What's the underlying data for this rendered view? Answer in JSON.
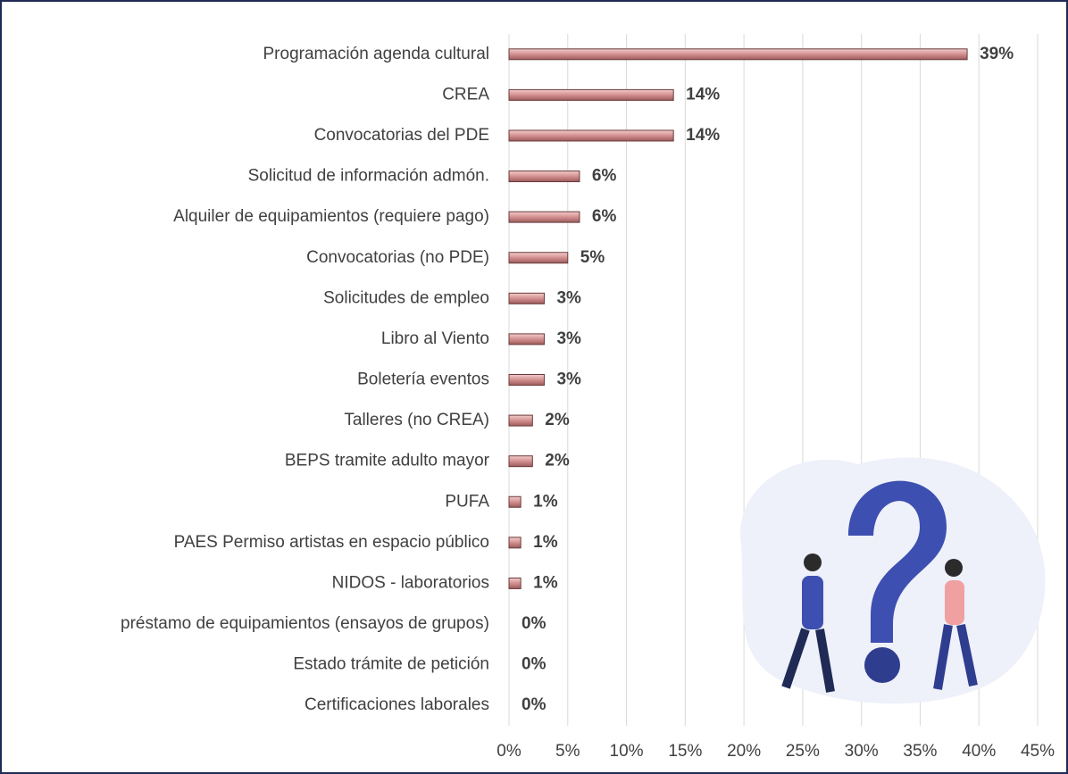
{
  "chart_data": {
    "type": "hbar",
    "categories": [
      "Programación agenda cultural",
      "CREA",
      "Convocatorias del PDE",
      "Solicitud de información admón.",
      "Alquiler de equipamientos (requiere pago)",
      "Convocatorias (no PDE)",
      "Solicitudes de empleo",
      "Libro al Viento",
      "Boletería eventos",
      "Talleres (no CREA)",
      "BEPS tramite adulto mayor",
      "PUFA",
      "PAES Permiso artistas en espacio público",
      "NIDOS - laboratorios",
      "préstamo de equipamientos (ensayos de grupos)",
      "Estado trámite de petición",
      "Certificaciones laborales"
    ],
    "values": [
      39,
      14,
      14,
      6,
      6,
      5,
      3,
      3,
      3,
      2,
      2,
      1,
      1,
      1,
      0,
      0,
      0
    ],
    "value_labels": [
      "39%",
      "14%",
      "14%",
      "6%",
      "6%",
      "5%",
      "3%",
      "3%",
      "3%",
      "2%",
      "2%",
      "1%",
      "1%",
      "1%",
      "0%",
      "0%",
      "0%"
    ],
    "color": "#d99a9a",
    "xlim": [
      0,
      45
    ],
    "xticks": [
      {
        "value": 0,
        "label": "0%"
      },
      {
        "value": 5,
        "label": "5%"
      },
      {
        "value": 10,
        "label": "10%"
      },
      {
        "value": 15,
        "label": "15%"
      },
      {
        "value": 20,
        "label": "20%"
      },
      {
        "value": 25,
        "label": "25%"
      },
      {
        "value": 30,
        "label": "30%"
      },
      {
        "value": 35,
        "label": "35%"
      },
      {
        "value": 40,
        "label": "40%"
      },
      {
        "value": 45,
        "label": "45%"
      }
    ],
    "grid": true
  }
}
